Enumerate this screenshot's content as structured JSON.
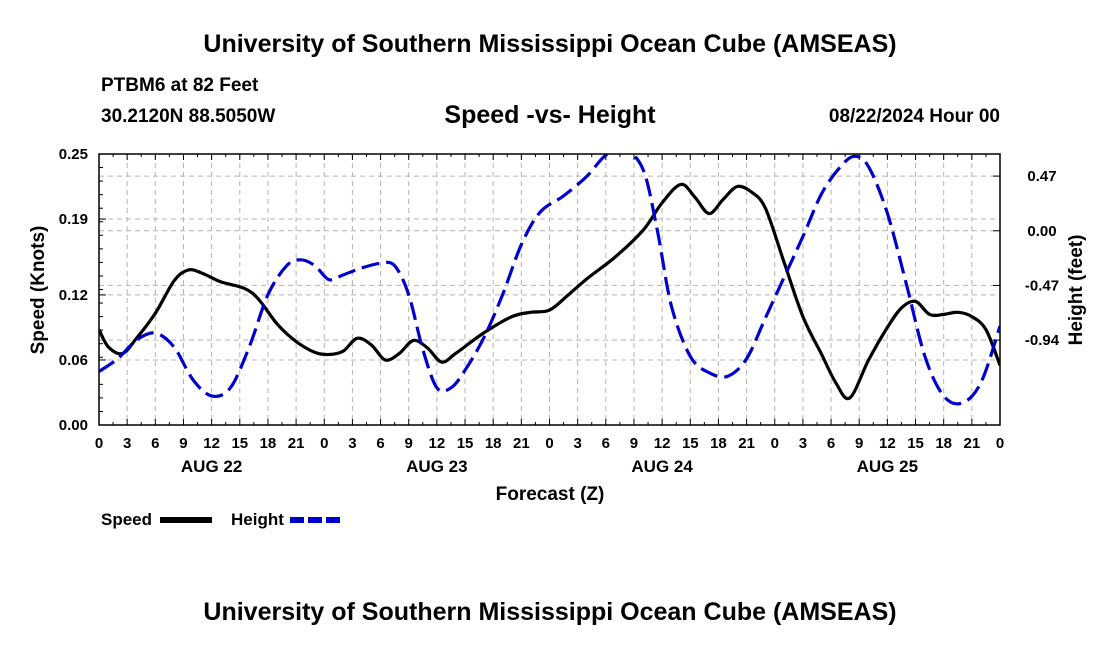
{
  "header": {
    "title": "University of Southern Mississippi Ocean Cube (AMSEAS)",
    "station": "PTBM6 at 82 Feet",
    "coords": "30.2120N  88.5050W",
    "chart_title": "Speed -vs- Height",
    "run": "08/22/2024 Hour 00"
  },
  "footer": {
    "title": "University of Southern Mississippi Ocean Cube (AMSEAS)"
  },
  "colors": {
    "speed": "#000000",
    "height": "#0000cc",
    "grid": "#b4b4b4"
  },
  "chart_data": {
    "type": "line",
    "title": "Speed -vs- Height",
    "xlabel": "Forecast (Z)",
    "ylabel_left": "Speed (Knots)",
    "ylabel_right": "Height (feet)",
    "x_unit": "forecast hours since 08/22/2024 00Z",
    "xlim": [
      0,
      96
    ],
    "x_ticks": [
      0,
      3,
      6,
      9,
      12,
      15,
      18,
      21,
      24,
      27,
      30,
      33,
      36,
      39,
      42,
      45,
      48,
      51,
      54,
      57,
      60,
      63,
      66,
      69,
      72,
      75,
      78,
      81,
      84,
      87,
      90,
      93,
      96
    ],
    "x_tick_labels": [
      "0",
      "3",
      "6",
      "9",
      "12",
      "15",
      "18",
      "21",
      "0",
      "3",
      "6",
      "9",
      "12",
      "15",
      "18",
      "21",
      "0",
      "3",
      "6",
      "9",
      "12",
      "15",
      "18",
      "21",
      "0",
      "3",
      "6",
      "9",
      "12",
      "15",
      "18",
      "21",
      "0"
    ],
    "day_labels": [
      {
        "label": "AUG 22",
        "hour": 12
      },
      {
        "label": "AUG 23",
        "hour": 36
      },
      {
        "label": "AUG 24",
        "hour": 60
      },
      {
        "label": "AUG 25",
        "hour": 84
      }
    ],
    "ylim_left": [
      0,
      0.25
    ],
    "yticks_left": [
      0,
      0.06,
      0.12,
      0.19,
      0.25
    ],
    "yticks_left_labels": [
      "0.00",
      "0.06",
      "0.12",
      "0.19",
      "0.25"
    ],
    "ylim_right": [
      -1.67,
      0.66
    ],
    "yticks_right": [
      -0.94,
      -0.47,
      0.0,
      0.47
    ],
    "yticks_right_labels": [
      "-0.94",
      "-0.47",
      "0.00",
      "0.47"
    ],
    "legend": [
      {
        "name": "Speed",
        "style": "solid"
      },
      {
        "name": "Height",
        "style": "dashed"
      }
    ],
    "series": [
      {
        "name": "Speed",
        "axis": "left",
        "x": [
          0,
          1,
          2.5,
          4,
          6,
          8,
          9.5,
          11,
          13,
          15.5,
          17,
          19,
          21,
          23,
          24.5,
          26,
          27.5,
          29,
          30.5,
          32,
          33.5,
          35,
          36.5,
          38,
          41,
          44,
          46,
          48,
          50,
          52,
          55,
          58,
          60,
          62,
          63.5,
          65,
          66.5,
          68,
          69.5,
          71,
          73,
          75,
          77,
          78.5,
          80,
          82,
          84,
          85.5,
          87,
          88.5,
          90,
          91.5,
          93,
          94.5,
          96
        ],
        "values": [
          0.088,
          0.072,
          0.066,
          0.08,
          0.103,
          0.133,
          0.143,
          0.14,
          0.132,
          0.126,
          0.116,
          0.093,
          0.077,
          0.067,
          0.065,
          0.068,
          0.08,
          0.074,
          0.06,
          0.066,
          0.078,
          0.071,
          0.058,
          0.066,
          0.085,
          0.1,
          0.104,
          0.106,
          0.12,
          0.135,
          0.155,
          0.18,
          0.205,
          0.222,
          0.21,
          0.195,
          0.208,
          0.22,
          0.215,
          0.2,
          0.15,
          0.1,
          0.065,
          0.039,
          0.025,
          0.06,
          0.09,
          0.108,
          0.114,
          0.102,
          0.102,
          0.104,
          0.1,
          0.088,
          0.055
        ]
      },
      {
        "name": "Height",
        "axis": "right",
        "x": [
          0,
          2,
          4,
          6,
          8,
          10,
          12,
          14,
          16,
          18,
          20,
          21.5,
          23,
          24.5,
          26,
          28,
          30,
          31.5,
          33,
          34.5,
          36,
          37.5,
          39,
          41,
          43,
          45,
          47,
          49.5,
          52,
          54,
          56,
          58,
          59.5,
          61,
          63,
          65,
          67,
          69,
          71,
          73,
          75,
          77,
          79,
          80.5,
          82,
          84,
          86,
          88,
          90,
          92,
          94,
          96
        ],
        "values": [
          -1.21,
          -1.1,
          -0.94,
          -0.88,
          -1.0,
          -1.28,
          -1.42,
          -1.35,
          -1.0,
          -0.55,
          -0.3,
          -0.25,
          -0.3,
          -0.42,
          -0.38,
          -0.32,
          -0.28,
          -0.3,
          -0.55,
          -1.02,
          -1.35,
          -1.35,
          -1.2,
          -0.92,
          -0.55,
          -0.12,
          0.16,
          0.3,
          0.47,
          0.65,
          0.7,
          0.52,
          0.0,
          -0.65,
          -1.08,
          -1.22,
          -1.25,
          -1.1,
          -0.75,
          -0.4,
          -0.05,
          0.32,
          0.55,
          0.64,
          0.55,
          0.15,
          -0.45,
          -1.08,
          -1.42,
          -1.48,
          -1.3,
          -0.82
        ]
      }
    ]
  }
}
